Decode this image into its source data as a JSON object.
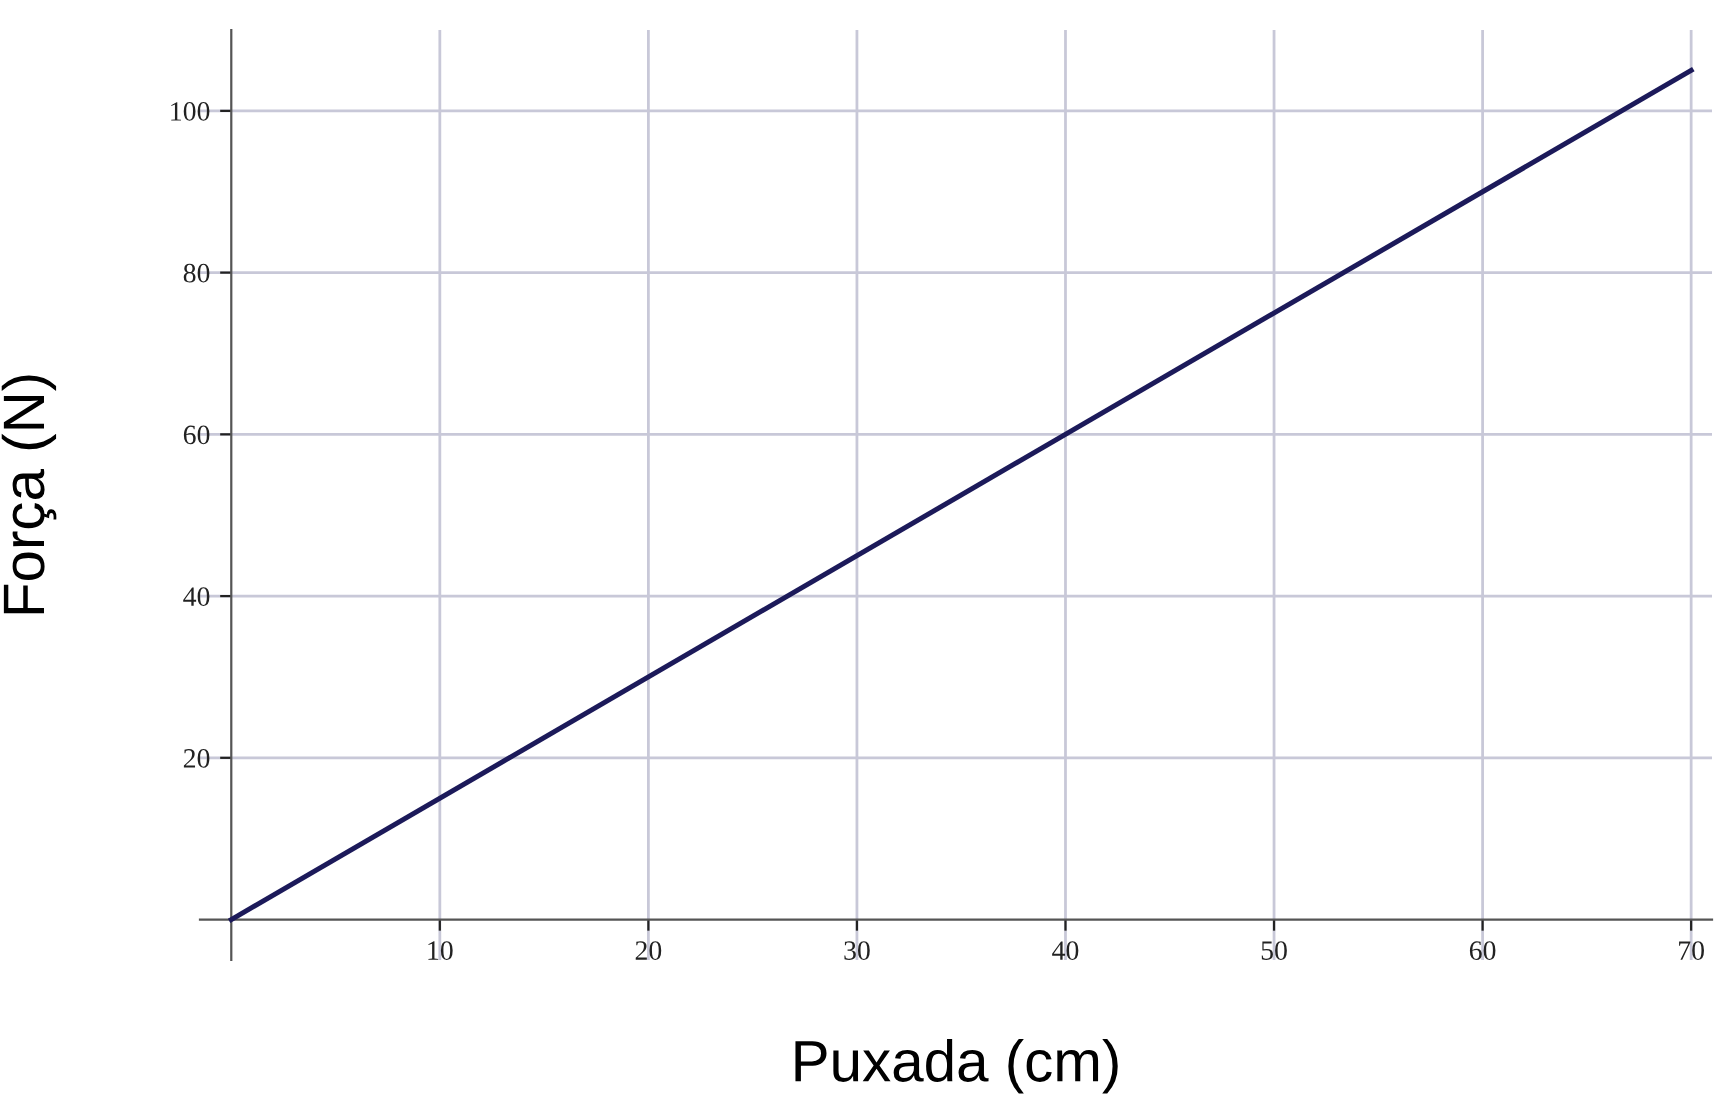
{
  "chart_data": {
    "type": "line",
    "xlabel": "Puxada (cm)",
    "ylabel": "Força (N)",
    "x": [
      0,
      70
    ],
    "series": [
      {
        "color": "#1c1a5a",
        "values": [
          0,
          105
        ]
      }
    ],
    "xlim": [
      -1.5,
      71
    ],
    "ylim": [
      -5,
      110
    ],
    "xticks": [
      10,
      20,
      30,
      40,
      50,
      60,
      70
    ],
    "yticks": [
      20,
      40,
      60,
      80,
      100
    ],
    "grid": true,
    "marker": "none",
    "line_style": "solid"
  }
}
